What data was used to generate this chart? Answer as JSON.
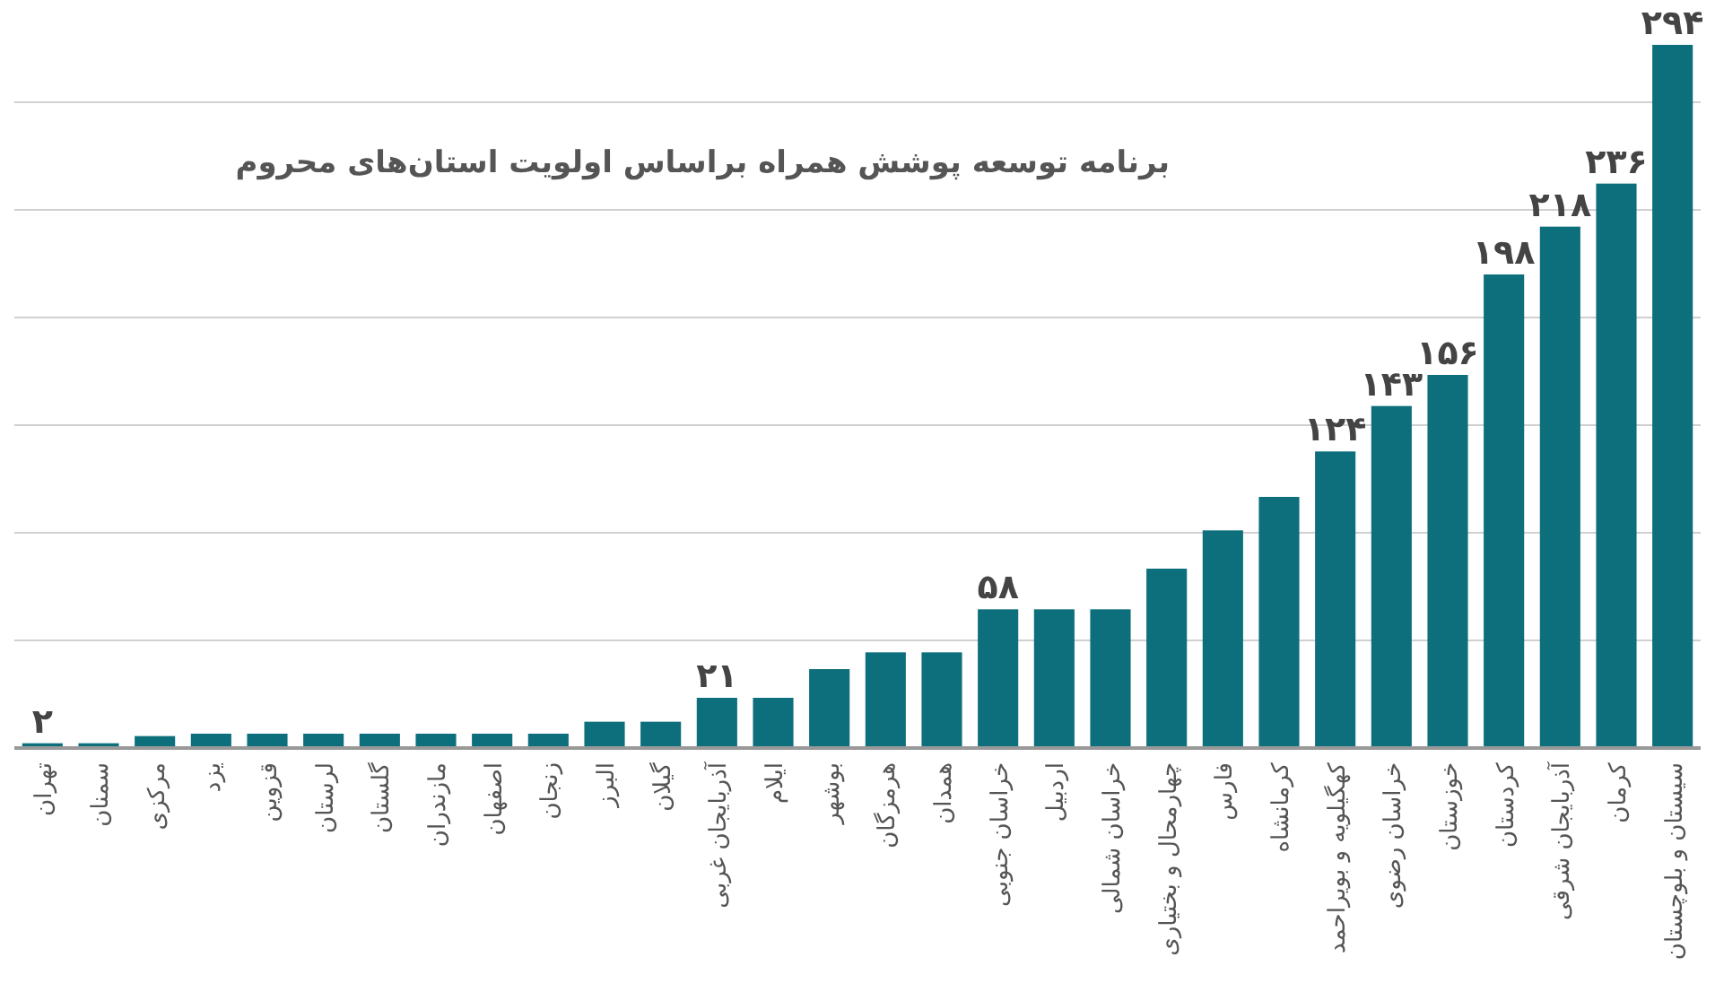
{
  "chart_data": {
    "type": "bar",
    "title": "برنامه توسعه پوشش همراه براساس اولویت استان‌های محروم",
    "categories": [
      "تهران",
      "سمنان",
      "مرکزی",
      "یزد",
      "قزوین",
      "لرستان",
      "گلستان",
      "مازندران",
      "اصفهان",
      "زنجان",
      "البرز",
      "گیلان",
      "آذربایجان غربی",
      "ایلام",
      "بوشهر",
      "هرمزگان",
      "همدان",
      "خراسان جنوبی",
      "اردبیل",
      "خراسان شمالی",
      "چهارمحال و بختیاری",
      "فارس",
      "کرمانشاه",
      "کهگیلویه و بویراحمد",
      "خراسان رضوی",
      "خوزستان",
      "کردستان",
      "آذربایجان شرقی",
      "کرمان",
      "سیستان و بلوچستان"
    ],
    "values": [
      2,
      2,
      5,
      6,
      6,
      6,
      6,
      6,
      6,
      6,
      11,
      11,
      21,
      21,
      33,
      40,
      40,
      58,
      58,
      58,
      75,
      91,
      105,
      124,
      143,
      156,
      198,
      218,
      236,
      294
    ],
    "value_labels": [
      "۲",
      null,
      null,
      null,
      null,
      null,
      null,
      null,
      null,
      null,
      null,
      null,
      "۲۱",
      null,
      null,
      null,
      null,
      "۵۸",
      null,
      null,
      null,
      null,
      null,
      "۱۲۴",
      "۱۴۳",
      "۱۵۶",
      "۱۹۸",
      "۲۱۸",
      "۲۳۶",
      "۲۹۴"
    ],
    "color": "#0e6f7c",
    "yticks": [
      {
        "value": 0,
        "label": null
      },
      {
        "value": 45,
        "label": null
      },
      {
        "value": 90,
        "label": null
      },
      {
        "value": 135,
        "label": null
      },
      {
        "value": 180,
        "label": null
      },
      {
        "value": 225,
        "label": null
      },
      {
        "value": 270,
        "label": null
      }
    ],
    "grid": "y",
    "tick_labels": "x"
  }
}
